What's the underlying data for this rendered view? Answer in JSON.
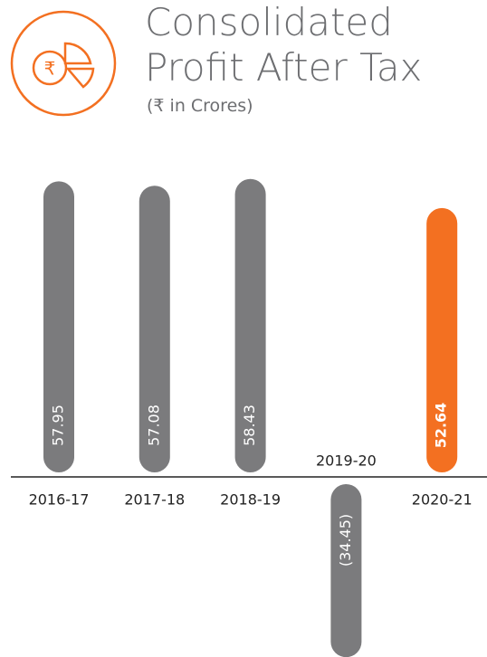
{
  "chart_data": {
    "type": "bar",
    "title": "Consolidated Profit After Tax",
    "subtitle": "(₹ in Crores)",
    "categories": [
      "2016-17",
      "2017-18",
      "2018-19",
      "2019-20",
      "2020-21"
    ],
    "values": [
      57.95,
      57.08,
      58.43,
      -34.45,
      52.64
    ],
    "value_labels": [
      "57.95",
      "57.08",
      "58.43",
      "(34.45)",
      "52.64"
    ],
    "colors": [
      "#7b7b7d",
      "#7b7b7d",
      "#7b7b7d",
      "#7b7b7d",
      "#f37021"
    ]
  }
}
